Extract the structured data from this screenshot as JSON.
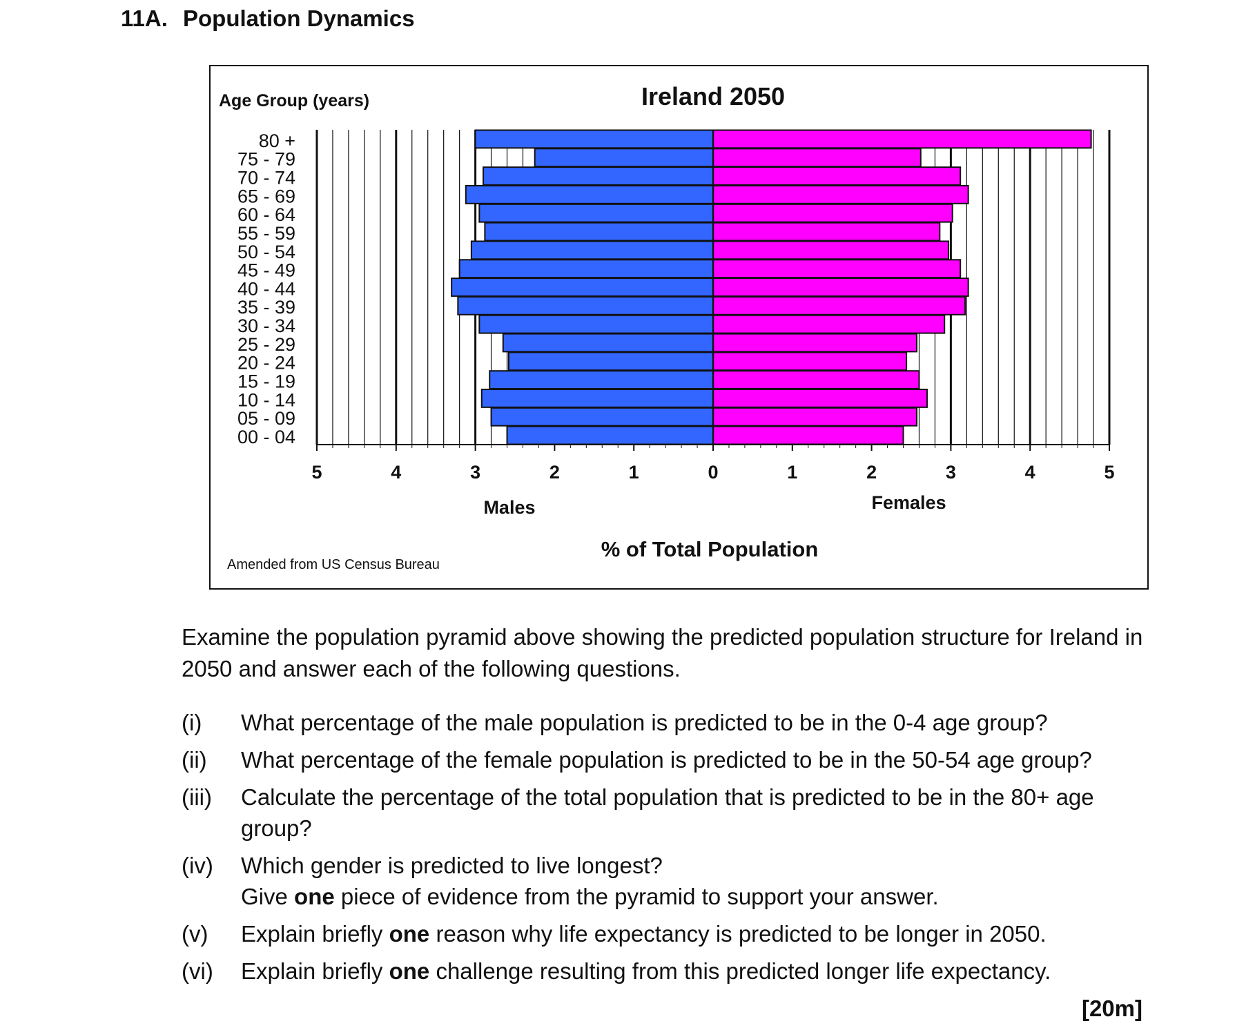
{
  "section": {
    "number": "11A.",
    "title": "Population Dynamics"
  },
  "chart_data": {
    "type": "bar",
    "subtype": "population-pyramid",
    "title": "Ireland 2050",
    "ylabel": "Age Group (years)",
    "xlabel": "% of Total Population",
    "source": "Amended from US Census Bureau",
    "categories": [
      "80 +",
      "75 - 79",
      "70 - 74",
      "65 - 69",
      "60 - 64",
      "55 - 59",
      "50 - 54",
      "45 - 49",
      "40 - 44",
      "35 - 39",
      "30 - 34",
      "25 - 29",
      "20 - 24",
      "15 - 19",
      "10 - 14",
      "05 - 09",
      "00 - 04"
    ],
    "series": [
      {
        "name": "Males",
        "color": "#3366ff",
        "values": [
          3.0,
          2.25,
          2.9,
          3.12,
          2.95,
          2.88,
          3.05,
          3.2,
          3.3,
          3.22,
          2.95,
          2.65,
          2.58,
          2.82,
          2.92,
          2.8,
          2.6
        ]
      },
      {
        "name": "Females",
        "color": "#ff00ff",
        "values": [
          4.77,
          2.62,
          3.12,
          3.22,
          3.02,
          2.86,
          2.97,
          3.12,
          3.22,
          3.18,
          2.92,
          2.57,
          2.44,
          2.6,
          2.7,
          2.57,
          2.4
        ]
      }
    ],
    "xlim": [
      -5,
      5
    ],
    "xticks_male": [
      "5",
      "4",
      "3",
      "2",
      "1",
      "0"
    ],
    "xticks_female": [
      "1",
      "2",
      "3",
      "4",
      "5"
    ],
    "grid": true
  },
  "intro": "Examine the population pyramid above showing the predicted population structure for Ireland in 2050 and answer each of the following questions.",
  "questions": [
    {
      "num": "(i)",
      "text": "What percentage of the male population is predicted to be in the 0-4 age group?"
    },
    {
      "num": "(ii)",
      "text": "What percentage of the female population is predicted to be in the 50-54 age group?"
    },
    {
      "num": "(iii)",
      "text": "Calculate the percentage of the total population that is predicted to be in the 80+ age group?"
    },
    {
      "num": "(iv)",
      "line1": "Which gender is predicted to live longest?",
      "pre": "Give ",
      "bold": "one",
      "post": " piece of evidence from the pyramid to support your answer."
    },
    {
      "num": "(v)",
      "pre": "Explain briefly ",
      "bold": "one",
      "post": " reason why life expectancy is predicted to be longer in 2050."
    },
    {
      "num": "(vi)",
      "pre": "Explain briefly ",
      "bold": "one",
      "post": " challenge resulting from this predicted longer life expectancy."
    }
  ],
  "marks": "[20m]"
}
